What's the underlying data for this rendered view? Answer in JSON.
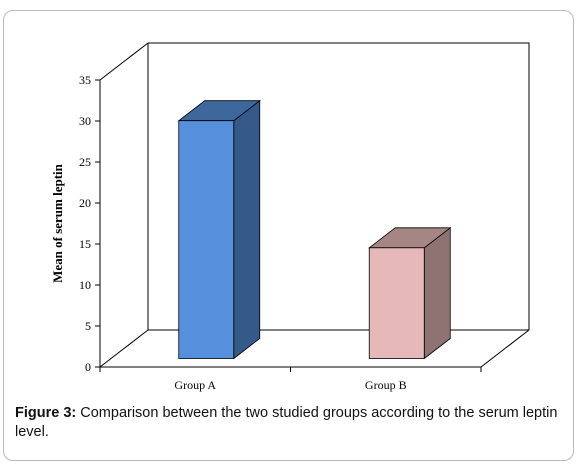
{
  "chart_data": {
    "type": "bar",
    "style": "3d-column",
    "categories": [
      "Group A",
      "Group B"
    ],
    "values": [
      29,
      13.5
    ],
    "colors": [
      "#568fdc",
      "#e6b9b9"
    ],
    "title": "",
    "xlabel": "",
    "ylabel": "Mean of serum leptin",
    "ylim": [
      0,
      35
    ],
    "yticks": [
      "0",
      "5",
      "10",
      "15",
      "20",
      "25",
      "30",
      "35"
    ],
    "grid": false,
    "legend": "none"
  },
  "caption": {
    "label": "Figure 3:",
    "text": " Comparison between the two studied groups according to the serum leptin level."
  }
}
